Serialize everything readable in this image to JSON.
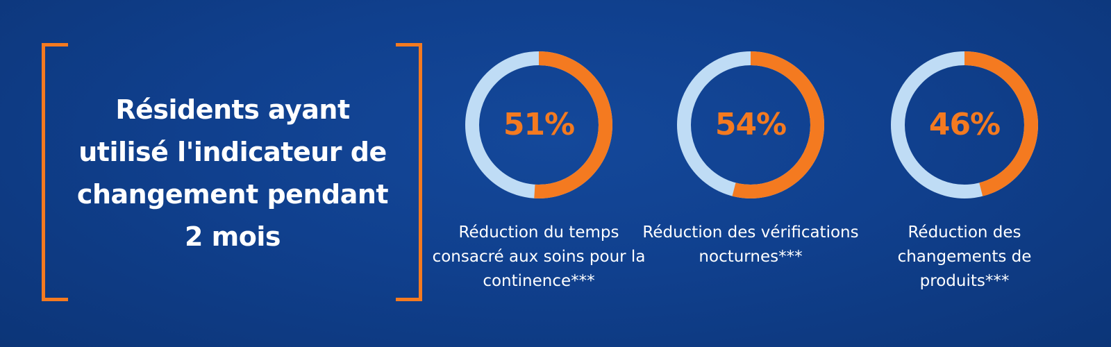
{
  "headline": "Résidents ayant utilisé l'indicateur de changement pendant 2 mois",
  "colors": {
    "accent": "#f47a20",
    "ring_track": "#bfdcf5",
    "background": "#10408e",
    "text": "#ffffff"
  },
  "stats": [
    {
      "percent_label": "51%",
      "caption": "Réduction du temps consacré aux soins pour la continence***"
    },
    {
      "percent_label": "54%",
      "caption": "Réduction des vérifications nocturnes***"
    },
    {
      "percent_label": "46%",
      "caption": "Réduction des changements de produits***"
    }
  ],
  "chart_data": {
    "type": "pie",
    "categories": [
      "Réduction du temps consacré aux soins pour la continence***",
      "Réduction des vérifications nocturnes***",
      "Réduction des changements de produits***"
    ],
    "values": [
      51,
      54,
      46
    ],
    "unit": "%",
    "max": 100
  }
}
